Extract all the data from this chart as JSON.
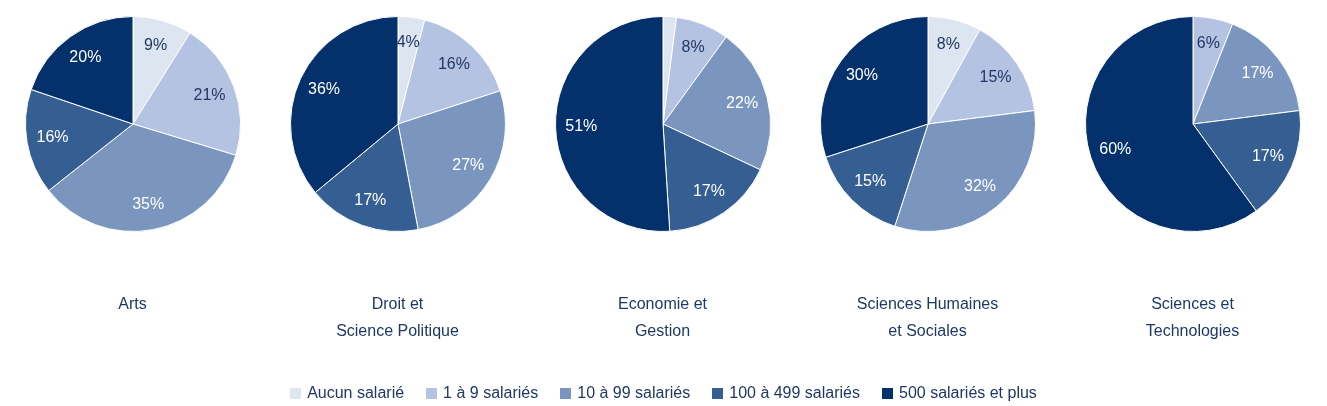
{
  "chart_data": [
    {
      "type": "pie",
      "title": "Arts",
      "categories": [
        "Aucun salarié",
        "1 à 9 salariés",
        "10 à 99 salariés",
        "100 à 499 salariés",
        "500 salariés et plus"
      ],
      "values": [
        9,
        21,
        35,
        16,
        20
      ],
      "value_labels": [
        "9%",
        "21%",
        "35%",
        "16%",
        "20%"
      ],
      "colors": [
        "#dde5f1",
        "#b4c3e2",
        "#7a96be",
        "#355f92",
        "#04306b"
      ],
      "legend": "bottom"
    },
    {
      "type": "pie",
      "title": "Droit et\nScience Politique",
      "categories": [
        null,
        null,
        null,
        null,
        null
      ],
      "values": [
        4,
        16,
        27,
        17,
        36
      ],
      "value_labels": [
        "4%",
        "16%",
        "27%",
        "17%",
        "36%"
      ],
      "colors": [
        "#dde5f1",
        "#b4c3e2",
        "#7a96be",
        "#355f92",
        "#04306b"
      ]
    },
    {
      "type": "pie",
      "title": "Economie et\nGestion",
      "categories": [
        null,
        null,
        null,
        null,
        null
      ],
      "values": [
        2,
        8,
        22,
        17,
        51
      ],
      "value_labels": [
        null,
        "8%",
        "22%",
        "17%",
        "51%"
      ],
      "colors": [
        "#dde5f1",
        "#b4c3e2",
        "#7a96be",
        "#355f92",
        "#04306b"
      ]
    },
    {
      "type": "pie",
      "title": "Sciences Humaines\net Sociales",
      "categories": [
        null,
        null,
        null,
        null,
        null
      ],
      "values": [
        8,
        15,
        32,
        15,
        30
      ],
      "value_labels": [
        "8%",
        "15%",
        "32%",
        "15%",
        "30%"
      ],
      "colors": [
        "#dde5f1",
        "#b4c3e2",
        "#7a96be",
        "#355f92",
        "#04306b"
      ]
    },
    {
      "type": "pie",
      "title": "Sciences et\nTechnologies",
      "categories": [
        null,
        null,
        null,
        null,
        null
      ],
      "values": [
        0,
        6,
        17,
        17,
        60
      ],
      "value_labels": [
        null,
        "6%",
        "17%",
        "17%",
        "60%"
      ],
      "colors": [
        "#dde5f1",
        "#b4c3e2",
        "#7a96be",
        "#355f92",
        "#04306b"
      ]
    }
  ]
}
